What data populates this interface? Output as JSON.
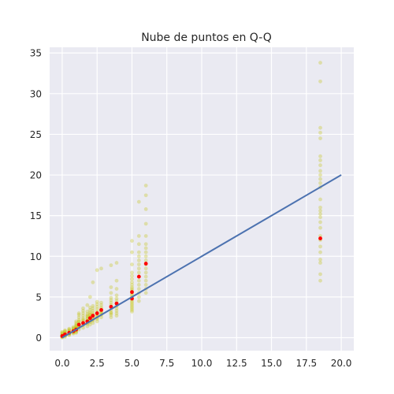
{
  "chart_data": {
    "type": "scatter",
    "title": "Nube de puntos en Q-Q",
    "xlabel": "",
    "ylabel": "",
    "xlim": [
      -0.9,
      20.9
    ],
    "ylim": [
      -1.6,
      35.7
    ],
    "xticks": [
      0.0,
      2.5,
      5.0,
      7.5,
      10.0,
      12.5,
      15.0,
      17.5,
      20.0
    ],
    "xtick_labels": [
      "0.0",
      "2.5",
      "5.0",
      "7.5",
      "10.0",
      "12.5",
      "15.0",
      "17.5",
      "20.0"
    ],
    "yticks": [
      0,
      5,
      10,
      15,
      20,
      25,
      30,
      35
    ],
    "ytick_labels": [
      "0",
      "5",
      "10",
      "15",
      "20",
      "25",
      "30",
      "35"
    ],
    "grid": true,
    "colors": {
      "background": "#eaeaf2",
      "grid": "#ffffff",
      "scatter": "#bfbf00",
      "means": "#ff0000",
      "line": "#4c72b0"
    },
    "series": [
      {
        "type": "scatter",
        "x": [
          0.0,
          0.0,
          0.0,
          0.0,
          0.0,
          0.0,
          0.0,
          0.0,
          0.0,
          0.0,
          0.2,
          0.2,
          0.2,
          0.2,
          0.2,
          0.2,
          0.2,
          0.2,
          0.2,
          0.2,
          0.5,
          0.5,
          0.5,
          0.5,
          0.5,
          0.5,
          0.5,
          0.5,
          0.5,
          0.5,
          0.8,
          0.8,
          0.8,
          0.8,
          0.8,
          0.8,
          0.8,
          0.8,
          0.8,
          0.8,
          1.0,
          1.0,
          1.0,
          1.0,
          1.0,
          1.0,
          1.0,
          1.0,
          1.0,
          1.0,
          1.0,
          1.0,
          1.0,
          1.2,
          1.2,
          1.2,
          1.2,
          1.2,
          1.2,
          1.2,
          1.2,
          1.2,
          1.2,
          1.2,
          1.2,
          1.5,
          1.5,
          1.5,
          1.5,
          1.5,
          1.5,
          1.5,
          1.5,
          1.5,
          1.5,
          1.5,
          1.5,
          1.8,
          1.8,
          1.8,
          1.8,
          1.8,
          1.8,
          1.8,
          1.8,
          1.8,
          1.8,
          1.8,
          1.8,
          2.0,
          2.0,
          2.0,
          2.0,
          2.0,
          2.0,
          2.0,
          2.0,
          2.0,
          2.0,
          2.0,
          2.0,
          2.0,
          2.2,
          2.2,
          2.2,
          2.2,
          2.2,
          2.2,
          2.2,
          2.2,
          2.2,
          2.2,
          2.2,
          2.2,
          2.5,
          2.5,
          2.5,
          2.5,
          2.5,
          2.5,
          2.5,
          2.5,
          2.5,
          2.5,
          2.5,
          2.5,
          2.5,
          2.8,
          2.8,
          2.8,
          2.8,
          2.8,
          2.8,
          2.8,
          2.8,
          2.8,
          2.8,
          2.8,
          3.5,
          3.5,
          3.5,
          3.5,
          3.5,
          3.5,
          3.5,
          3.5,
          3.5,
          3.5,
          3.5,
          3.5,
          3.5,
          3.9,
          3.9,
          3.9,
          3.9,
          3.9,
          3.9,
          3.9,
          3.9,
          3.9,
          3.9,
          3.9,
          3.9,
          5.0,
          5.0,
          5.0,
          5.0,
          5.0,
          5.0,
          5.0,
          5.0,
          5.0,
          5.0,
          5.0,
          5.0,
          5.0,
          5.0,
          5.0,
          5.0,
          5.0,
          5.0,
          5.0,
          5.0,
          5.0,
          5.0,
          5.0,
          5.0,
          5.5,
          5.5,
          5.5,
          5.5,
          5.5,
          5.5,
          5.5,
          5.5,
          5.5,
          5.5,
          5.5,
          5.5,
          5.5,
          5.5,
          5.5,
          5.5,
          6.0,
          6.0,
          6.0,
          6.0,
          6.0,
          6.0,
          6.0,
          6.0,
          6.0,
          6.0,
          6.0,
          6.0,
          6.0,
          6.0,
          6.0,
          6.0,
          6.0,
          6.0,
          18.5,
          18.5,
          18.5,
          18.5,
          18.5,
          18.5,
          18.5,
          18.5,
          18.5,
          18.5,
          18.5,
          18.5,
          18.5,
          18.5,
          18.5,
          18.5,
          18.5,
          18.5,
          18.5,
          18.5,
          18.5,
          18.5,
          18.5,
          18.5,
          18.5,
          18.5,
          18.5,
          18.5
        ],
        "y": [
          0.0,
          0.1,
          0.2,
          0.3,
          0.4,
          0.5,
          0.6,
          0.7,
          0.2,
          0.1,
          0.1,
          0.3,
          0.5,
          0.7,
          0.9,
          0.4,
          0.2,
          0.6,
          0.8,
          0.3,
          0.3,
          0.5,
          0.7,
          0.9,
          1.1,
          0.6,
          0.4,
          0.8,
          1.0,
          0.5,
          0.5,
          0.7,
          0.9,
          1.1,
          1.3,
          0.8,
          0.6,
          1.0,
          1.2,
          0.7,
          0.6,
          0.8,
          1.0,
          1.2,
          1.4,
          1.6,
          1.8,
          0.9,
          1.1,
          1.3,
          1.5,
          2.0,
          0.7,
          1.0,
          1.3,
          1.6,
          1.9,
          2.2,
          2.5,
          2.8,
          1.4,
          1.7,
          2.0,
          3.0,
          1.2,
          1.2,
          1.5,
          1.8,
          2.1,
          2.4,
          2.7,
          3.0,
          3.3,
          1.6,
          1.9,
          2.2,
          3.6,
          1.4,
          1.7,
          2.0,
          2.3,
          2.6,
          2.9,
          3.2,
          1.8,
          2.1,
          2.4,
          2.7,
          4.0,
          1.6,
          1.9,
          2.2,
          2.5,
          2.8,
          3.1,
          3.4,
          3.7,
          2.0,
          2.3,
          2.6,
          2.9,
          5.0,
          1.8,
          2.1,
          2.4,
          2.7,
          3.0,
          3.3,
          3.6,
          3.9,
          2.2,
          2.5,
          2.8,
          6.8,
          2.0,
          2.3,
          2.6,
          2.9,
          3.2,
          3.5,
          3.8,
          4.1,
          4.4,
          2.4,
          2.7,
          3.0,
          8.3,
          2.5,
          2.8,
          3.1,
          3.4,
          3.7,
          4.0,
          4.3,
          2.9,
          3.2,
          3.5,
          8.5,
          2.5,
          2.8,
          3.1,
          3.4,
          3.7,
          4.0,
          4.3,
          4.6,
          4.9,
          5.5,
          6.2,
          3.0,
          8.9,
          2.7,
          3.0,
          3.3,
          3.6,
          3.9,
          4.2,
          4.5,
          4.8,
          5.2,
          6.0,
          7.0,
          9.2,
          3.2,
          3.4,
          3.6,
          3.8,
          4.0,
          4.2,
          4.4,
          4.6,
          4.8,
          5.0,
          5.2,
          5.4,
          5.6,
          5.8,
          6.0,
          6.2,
          6.5,
          6.8,
          7.2,
          7.6,
          8.0,
          9.0,
          10.5,
          11.9,
          4.5,
          5.0,
          5.5,
          6.0,
          6.5,
          7.0,
          7.5,
          8.0,
          8.5,
          9.0,
          9.5,
          10.0,
          10.5,
          11.5,
          12.5,
          16.7,
          5.5,
          6.0,
          6.5,
          7.0,
          7.5,
          8.0,
          8.5,
          9.0,
          9.5,
          10.0,
          10.5,
          11.0,
          11.5,
          12.5,
          14.0,
          15.8,
          17.5,
          18.7,
          7.0,
          7.8,
          9.2,
          9.6,
          10.5,
          11.2,
          12.0,
          12.5,
          13.5,
          14.2,
          14.8,
          15.2,
          15.6,
          16.0,
          17.0,
          18.5,
          19.0,
          19.5,
          20.0,
          20.5,
          21.2,
          21.8,
          22.3,
          24.5,
          25.2,
          25.8,
          31.5,
          33.8
        ]
      },
      {
        "type": "scatter",
        "x": [
          0.0,
          0.2,
          0.5,
          0.8,
          1.0,
          1.2,
          1.5,
          1.8,
          2.0,
          2.2,
          2.5,
          2.8,
          3.5,
          3.9,
          5.0,
          5.0,
          5.5,
          6.0,
          18.5
        ],
        "y": [
          0.2,
          0.4,
          0.6,
          0.8,
          1.0,
          1.6,
          1.8,
          2.0,
          2.4,
          2.7,
          3.0,
          3.4,
          3.8,
          4.2,
          4.8,
          5.6,
          7.5,
          9.1,
          12.2
        ]
      },
      {
        "type": "line",
        "x": [
          0,
          20
        ],
        "y": [
          0,
          20
        ]
      }
    ]
  }
}
